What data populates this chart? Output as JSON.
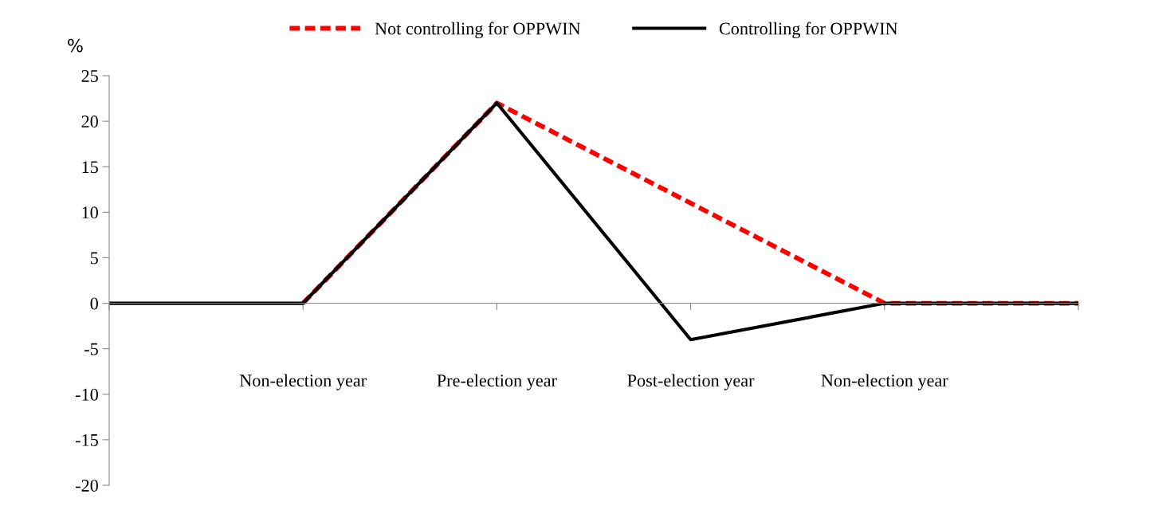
{
  "chart_data": {
    "type": "line",
    "ylabel": "%",
    "categories": [
      null,
      "Non-election year",
      "Pre-election year",
      "Post-election year",
      "Non-election year",
      null
    ],
    "series": [
      {
        "name": "Not controlling for OPPWIN",
        "color": "#ff0000",
        "line_style": "dashed",
        "values": [
          null,
          0,
          22,
          11,
          0,
          0
        ]
      },
      {
        "name": "Controlling for OPPWIN",
        "color": "#000000",
        "line_style": "solid",
        "values": [
          0,
          0,
          22,
          -4,
          0,
          0
        ]
      }
    ],
    "ylim": [
      -20,
      25
    ],
    "yticks": [
      -20,
      -15,
      -10,
      -5,
      0,
      5,
      10,
      15,
      20,
      25
    ],
    "legend": "top",
    "marker": "none"
  }
}
